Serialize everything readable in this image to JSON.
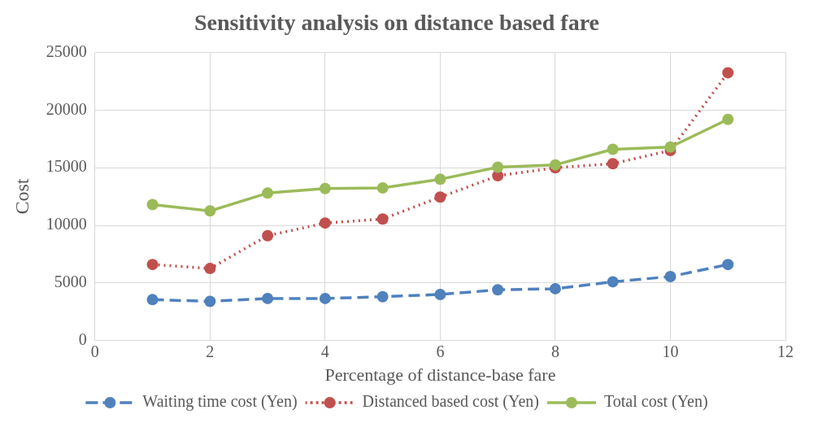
{
  "chart_data": {
    "type": "line",
    "title": "Sensitivity analysis on distance based fare",
    "xlabel": "Percentage of distance-base fare",
    "ylabel": "Cost",
    "x": [
      1,
      2,
      3,
      4,
      5,
      6,
      7,
      8,
      9,
      10,
      11
    ],
    "series": [
      {
        "name": "Waiting time cost (Yen)",
        "color": "#4f81bd",
        "line_style": "dashed",
        "values": [
          3550,
          3400,
          3650,
          3650,
          3800,
          4000,
          4400,
          4500,
          5100,
          5550,
          6600
        ]
      },
      {
        "name": "Distanced based cost (Yen)",
        "color": "#c0504d",
        "line_style": "dotted",
        "values": [
          6600,
          6250,
          9100,
          10200,
          10550,
          12450,
          14300,
          15000,
          15350,
          16500,
          23250
        ]
      },
      {
        "name": "Total cost (Yen)",
        "color": "#9bbb59",
        "line_style": "solid",
        "values": [
          11800,
          11250,
          12800,
          13200,
          13250,
          14000,
          15050,
          15250,
          16600,
          16800,
          19200
        ]
      }
    ],
    "xlim": [
      0,
      12
    ],
    "xticks": [
      0,
      2,
      4,
      6,
      8,
      10,
      12
    ],
    "ylim": [
      0,
      25000
    ],
    "yticks": [
      0,
      5000,
      10000,
      15000,
      20000,
      25000
    ],
    "grid": true,
    "legend": "bottom",
    "marker": "circle"
  }
}
